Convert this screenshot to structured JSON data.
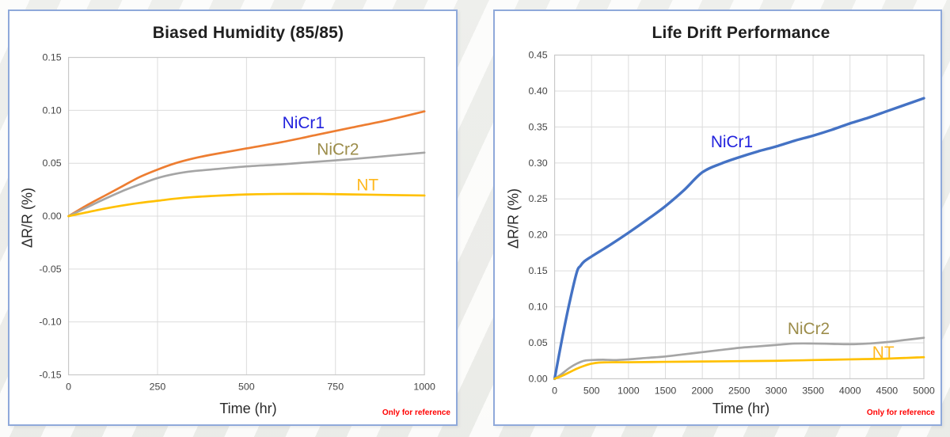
{
  "theme": {
    "panel_border_color": "#8FA9DA",
    "gridline_color": "#dcdcdc",
    "plot_border_color": "#c9c9c9",
    "footnote_color": "#FF0000"
  },
  "chart_data": [
    {
      "type": "line",
      "title": "Biased Humidity (85/85)",
      "xlabel": "Time (hr)",
      "ylabel": "ΔR/R (%)",
      "footnote": "Only for reference",
      "xlim": [
        0,
        1000
      ],
      "ylim": [
        -0.15,
        0.15
      ],
      "grid": true,
      "legend": "inline-labels",
      "xticks": {
        "values": [
          0,
          250,
          500,
          750,
          1000
        ],
        "labels": [
          "0",
          "250",
          "500",
          "750",
          "1000"
        ]
      },
      "yticks": {
        "values": [
          0.15,
          0.1,
          0.05,
          0.0,
          -0.05,
          -0.1,
          -0.15
        ],
        "labels": [
          "0.15",
          "0.10",
          "0.05",
          "0.00",
          "-0.05",
          "-0.10",
          "-0.15"
        ]
      },
      "series": [
        {
          "name": "NiCr1",
          "line_color": "#ED7D31",
          "label_color": "#2222DD",
          "label_at": [
            660,
            0.088
          ],
          "points": [
            [
              0,
              0
            ],
            [
              50,
              0.01
            ],
            [
              100,
              0.019
            ],
            [
              150,
              0.028
            ],
            [
              200,
              0.037
            ],
            [
              250,
              0.044
            ],
            [
              300,
              0.05
            ],
            [
              350,
              0.0545
            ],
            [
              400,
              0.058
            ],
            [
              500,
              0.064
            ],
            [
              600,
              0.07
            ],
            [
              700,
              0.077
            ],
            [
              800,
              0.084
            ],
            [
              900,
              0.091
            ],
            [
              1000,
              0.099
            ]
          ]
        },
        {
          "name": "NiCr2",
          "line_color": "#A5A5A5",
          "label_color": "#9C8D4B",
          "label_at": [
            757,
            0.063
          ],
          "points": [
            [
              0,
              0
            ],
            [
              50,
              0.008
            ],
            [
              100,
              0.016
            ],
            [
              150,
              0.0235
            ],
            [
              200,
              0.03
            ],
            [
              250,
              0.036
            ],
            [
              300,
              0.04
            ],
            [
              350,
              0.0425
            ],
            [
              400,
              0.044
            ],
            [
              500,
              0.047
            ],
            [
              600,
              0.049
            ],
            [
              700,
              0.0515
            ],
            [
              800,
              0.054
            ],
            [
              900,
              0.057
            ],
            [
              1000,
              0.06
            ]
          ]
        },
        {
          "name": "NT",
          "line_color": "#FFC000",
          "label_color": "#FFB81E",
          "label_at": [
            840,
            0.029
          ],
          "points": [
            [
              0,
              0
            ],
            [
              50,
              0.0035
            ],
            [
              100,
              0.007
            ],
            [
              150,
              0.01
            ],
            [
              200,
              0.0125
            ],
            [
              250,
              0.0145
            ],
            [
              300,
              0.0165
            ],
            [
              350,
              0.018
            ],
            [
              400,
              0.019
            ],
            [
              500,
              0.0205
            ],
            [
              600,
              0.021
            ],
            [
              700,
              0.021
            ],
            [
              800,
              0.0205
            ],
            [
              900,
              0.02
            ],
            [
              1000,
              0.0195
            ]
          ]
        }
      ]
    },
    {
      "type": "line",
      "title": "Life Drift Performance",
      "xlabel": "Time (hr)",
      "ylabel": "ΔR/R (%)",
      "footnote": "Only for reference",
      "xlim": [
        0,
        5000
      ],
      "ylim": [
        0,
        0.45
      ],
      "grid": true,
      "legend": "inline-labels",
      "xticks": {
        "values": [
          0,
          500,
          1000,
          1500,
          2000,
          2500,
          3000,
          3500,
          4000,
          4500,
          5000
        ],
        "labels": [
          "0",
          "500",
          "1000",
          "1500",
          "2000",
          "2500",
          "3000",
          "3500",
          "4000",
          "4500",
          "5000"
        ]
      },
      "yticks": {
        "values": [
          0.45,
          0.4,
          0.35,
          0.3,
          0.25,
          0.2,
          0.15,
          0.1,
          0.05,
          0.0
        ],
        "labels": [
          "0.45",
          "0.40",
          "0.35",
          "0.30",
          "0.25",
          "0.20",
          "0.15",
          "0.10",
          "0.05",
          "0.00"
        ]
      },
      "series": [
        {
          "name": "NiCr1",
          "line_color": "#4472C4",
          "label_color": "#2222DD",
          "label_at": [
            2400,
            0.329
          ],
          "points": [
            [
              0,
              0
            ],
            [
              100,
              0.055
            ],
            [
              200,
              0.105
            ],
            [
              300,
              0.148
            ],
            [
              350,
              0.157
            ],
            [
              400,
              0.163
            ],
            [
              500,
              0.17
            ],
            [
              750,
              0.186
            ],
            [
              1000,
              0.203
            ],
            [
              1250,
              0.221
            ],
            [
              1500,
              0.24
            ],
            [
              1750,
              0.262
            ],
            [
              2000,
              0.287
            ],
            [
              2250,
              0.299
            ],
            [
              2500,
              0.308
            ],
            [
              2750,
              0.316
            ],
            [
              3000,
              0.323
            ],
            [
              3250,
              0.331
            ],
            [
              3500,
              0.338
            ],
            [
              3750,
              0.346
            ],
            [
              4000,
              0.355
            ],
            [
              4250,
              0.363
            ],
            [
              4500,
              0.372
            ],
            [
              4750,
              0.381
            ],
            [
              5000,
              0.39
            ]
          ]
        },
        {
          "name": "NiCr2",
          "line_color": "#A5A5A5",
          "label_color": "#9C8D4B",
          "label_at": [
            3440,
            0.069
          ],
          "points": [
            [
              0,
              0
            ],
            [
              100,
              0.007
            ],
            [
              200,
              0.015
            ],
            [
              300,
              0.021
            ],
            [
              400,
              0.025
            ],
            [
              500,
              0.026
            ],
            [
              650,
              0.0265
            ],
            [
              800,
              0.026
            ],
            [
              1000,
              0.027
            ],
            [
              1250,
              0.029
            ],
            [
              1500,
              0.031
            ],
            [
              1750,
              0.034
            ],
            [
              2000,
              0.037
            ],
            [
              2250,
              0.04
            ],
            [
              2500,
              0.043
            ],
            [
              2750,
              0.045
            ],
            [
              3000,
              0.047
            ],
            [
              3250,
              0.049
            ],
            [
              3500,
              0.049
            ],
            [
              3750,
              0.0485
            ],
            [
              4000,
              0.048
            ],
            [
              4250,
              0.049
            ],
            [
              4500,
              0.051
            ],
            [
              4750,
              0.054
            ],
            [
              5000,
              0.057
            ]
          ]
        },
        {
          "name": "NT",
          "line_color": "#FFC000",
          "label_color": "#FFB81E",
          "label_at": [
            4450,
            0.036
          ],
          "points": [
            [
              0,
              0
            ],
            [
              100,
              0.004
            ],
            [
              200,
              0.009
            ],
            [
              300,
              0.014
            ],
            [
              400,
              0.018
            ],
            [
              500,
              0.021
            ],
            [
              600,
              0.0225
            ],
            [
              800,
              0.023
            ],
            [
              1000,
              0.023
            ],
            [
              1500,
              0.0235
            ],
            [
              2000,
              0.024
            ],
            [
              2500,
              0.0245
            ],
            [
              3000,
              0.025
            ],
            [
              3500,
              0.026
            ],
            [
              4000,
              0.027
            ],
            [
              4500,
              0.028
            ],
            [
              5000,
              0.03
            ]
          ]
        }
      ]
    }
  ]
}
